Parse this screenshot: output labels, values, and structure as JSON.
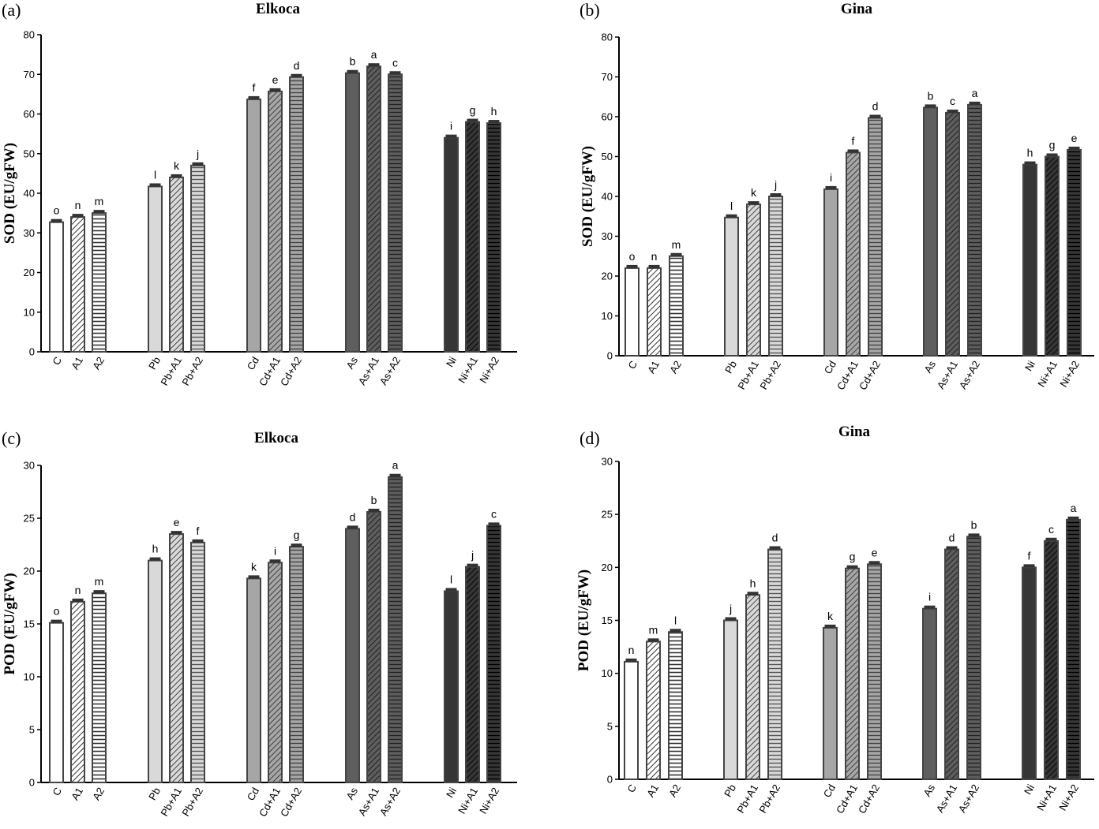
{
  "figure": {
    "panel_labels": [
      "(a)",
      "(b)",
      "(c)",
      "(d)"
    ]
  },
  "chart_data": [
    {
      "type": "bar",
      "panel": "(a)",
      "title": "Elkoca",
      "ylabel": "SOD (EU/gFW)",
      "xlabel": "",
      "ylim": [
        0,
        80
      ],
      "yticks": [
        0,
        10,
        20,
        30,
        40,
        50,
        60,
        70,
        80
      ],
      "categories": [
        "C",
        "A1",
        "A2",
        "Pb",
        "Pb+A1",
        "Pb+A2",
        "Cd",
        "Cd+A1",
        "Cd+A2",
        "As",
        "As+A1",
        "As+A2",
        "Ni",
        "Ni+A1",
        "Ni+A2"
      ],
      "values": [
        32.7,
        34.0,
        35.0,
        41.7,
        44.0,
        47.0,
        63.7,
        65.7,
        69.3,
        70.3,
        72.0,
        70.0,
        54.0,
        58.0,
        57.7
      ],
      "letters": [
        "o",
        "n",
        "m",
        "l",
        "k",
        "j",
        "f",
        "e",
        "d",
        "b",
        "a",
        "c",
        "i",
        "g",
        "h"
      ]
    },
    {
      "type": "bar",
      "panel": "(b)",
      "title": "Gina",
      "ylabel": "SOD (EU/gFW)",
      "xlabel": "",
      "ylim": [
        0,
        80
      ],
      "yticks": [
        0,
        10,
        20,
        30,
        40,
        50,
        60,
        70,
        80
      ],
      "categories": [
        "C",
        "A1",
        "A2",
        "Pb",
        "Pb+A1",
        "Pb+A2",
        "Cd",
        "Cd+A1",
        "Cd+A2",
        "As",
        "As+A1",
        "As+A2",
        "Ni",
        "Ni+A1",
        "Ni+A2"
      ],
      "values": [
        22.0,
        22.0,
        25.0,
        34.7,
        38.0,
        40.0,
        41.8,
        51.0,
        59.7,
        62.3,
        61.0,
        63.0,
        48.0,
        50.0,
        51.7
      ],
      "letters": [
        "o",
        "n",
        "m",
        "l",
        "k",
        "j",
        "i",
        "f",
        "d",
        "b",
        "c",
        "a",
        "h",
        "g",
        "e"
      ]
    },
    {
      "type": "bar",
      "panel": "(c)",
      "title": "Elkoca",
      "ylabel": "POD (EU/gFW)",
      "xlabel": "",
      "ylim": [
        0,
        30
      ],
      "yticks": [
        0,
        5,
        10,
        15,
        20,
        25,
        30
      ],
      "categories": [
        "C",
        "A1",
        "A2",
        "Pb",
        "Pb+A1",
        "Pb+A2",
        "Cd",
        "Cd+A1",
        "Cd+A2",
        "As",
        "As+A1",
        "As+A2",
        "Ni",
        "Ni+A1",
        "Ni+A2"
      ],
      "values": [
        15.1,
        17.1,
        17.9,
        21.0,
        23.5,
        22.7,
        19.3,
        20.8,
        22.3,
        24.0,
        25.6,
        28.9,
        18.1,
        20.4,
        24.3
      ],
      "letters": [
        "o",
        "n",
        "m",
        "h",
        "e",
        "f",
        "k",
        "i",
        "g",
        "d",
        "b",
        "a",
        "l",
        "j",
        "c"
      ]
    },
    {
      "type": "bar",
      "panel": "(d)",
      "title": "Gina",
      "ylabel": "POD (EU/gFW)",
      "xlabel": "",
      "ylim": [
        0,
        30
      ],
      "yticks": [
        0,
        5,
        10,
        15,
        20,
        25,
        30
      ],
      "categories": [
        "C",
        "A1",
        "A2",
        "Pb",
        "Pb+A1",
        "Pb+A2",
        "Cd",
        "Cd+A1",
        "Cd+A2",
        "As",
        "As+A1",
        "As+A2",
        "Ni",
        "Ni+A1",
        "Ni+A2"
      ],
      "values": [
        11.1,
        13.0,
        13.9,
        15.0,
        17.4,
        21.7,
        14.3,
        19.9,
        20.3,
        16.1,
        21.7,
        22.9,
        20.0,
        22.5,
        24.5
      ],
      "letters": [
        "n",
        "m",
        "l",
        "j",
        "h",
        "d",
        "k",
        "g",
        "e",
        "i",
        "d",
        "b",
        "f",
        "c",
        "a"
      ]
    }
  ],
  "colors": {
    "axis": "#000000",
    "bar_stroke": "#444444",
    "error_cap": "#333333",
    "group_fill": [
      "#ffffff",
      "#d9d9d9",
      "#a6a6a6",
      "#5e5e5e",
      "#363636"
    ]
  }
}
